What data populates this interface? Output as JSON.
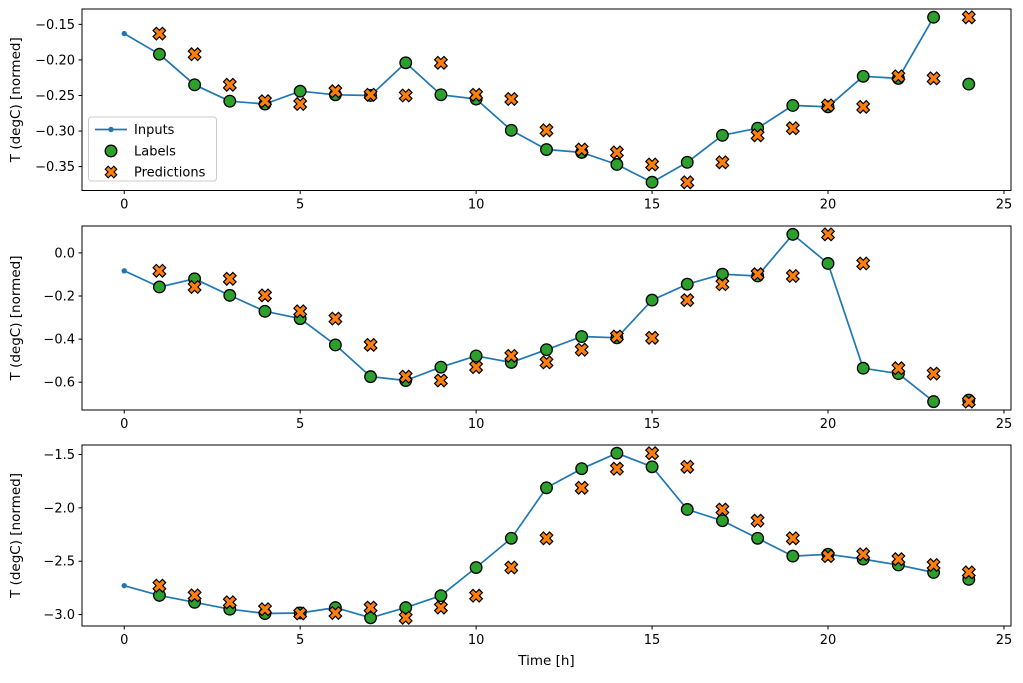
{
  "figure": {
    "background": "#ffffff",
    "xlabel": "Time [h]",
    "ylabel": "T (degC) [normed]",
    "xtick_labels": [
      "0",
      "5",
      "10",
      "15",
      "20",
      "25"
    ],
    "legend": {
      "entries": [
        "Inputs",
        "Labels",
        "Predictions"
      ],
      "location": "center-left of top subplot",
      "border_color": "#cccccc",
      "background": "#ffffff"
    },
    "colors": {
      "inputs": "#1f77b4",
      "labels": "#2ca02c",
      "predictions": "#ff7f0e",
      "marker_edge": "#000000",
      "axes": "#000000",
      "text": "#000000"
    }
  },
  "chart_data": [
    {
      "type": "line",
      "subplot": 1,
      "ylabel": "T (degC) [normed]",
      "xlabel": "",
      "grid": false,
      "xlim": [
        -1.2,
        25.2
      ],
      "ylim": [
        -0.3836,
        -0.1284
      ],
      "xticks": [
        0,
        5,
        10,
        15,
        20,
        25
      ],
      "yticks": [
        -0.15,
        -0.2,
        -0.25,
        -0.3,
        -0.35
      ],
      "ytick_labels": [
        "−0.15",
        "−0.20",
        "−0.25",
        "−0.30",
        "−0.35"
      ],
      "series": [
        {
          "name": "Inputs",
          "marker": "line-dot",
          "x": [
            0,
            1,
            2,
            3,
            4,
            5,
            6,
            7,
            8,
            9,
            10,
            11,
            12,
            13,
            14,
            15,
            16,
            17,
            18,
            19,
            20,
            21,
            22,
            23
          ],
          "values": [
            -0.163,
            -0.192,
            -0.235,
            -0.258,
            -0.262,
            -0.244,
            -0.249,
            -0.25,
            -0.204,
            -0.249,
            -0.255,
            -0.299,
            -0.326,
            -0.33,
            -0.347,
            -0.372,
            -0.344,
            -0.306,
            -0.296,
            -0.264,
            -0.266,
            -0.223,
            -0.226,
            -0.14
          ]
        },
        {
          "name": "Labels",
          "marker": "circle",
          "x": [
            1,
            2,
            3,
            4,
            5,
            6,
            7,
            8,
            9,
            10,
            11,
            12,
            13,
            14,
            15,
            16,
            17,
            18,
            19,
            20,
            21,
            22,
            23,
            24
          ],
          "values": [
            -0.192,
            -0.235,
            -0.258,
            -0.262,
            -0.244,
            -0.249,
            -0.25,
            -0.204,
            -0.249,
            -0.255,
            -0.299,
            -0.326,
            -0.33,
            -0.347,
            -0.372,
            -0.344,
            -0.306,
            -0.296,
            -0.264,
            -0.266,
            -0.223,
            -0.226,
            -0.14,
            -0.234
          ]
        },
        {
          "name": "Predictions",
          "marker": "X",
          "x": [
            1,
            2,
            3,
            4,
            5,
            6,
            7,
            8,
            9,
            10,
            11,
            12,
            13,
            14,
            15,
            16,
            17,
            18,
            19,
            20,
            21,
            22,
            23,
            24
          ],
          "values": [
            -0.163,
            -0.192,
            -0.235,
            -0.258,
            -0.262,
            -0.244,
            -0.249,
            -0.25,
            -0.204,
            -0.249,
            -0.255,
            -0.299,
            -0.326,
            -0.33,
            -0.347,
            -0.372,
            -0.344,
            -0.306,
            -0.296,
            -0.264,
            -0.266,
            -0.223,
            -0.226,
            -0.14
          ]
        }
      ]
    },
    {
      "type": "line",
      "subplot": 2,
      "ylabel": "T (degC) [normed]",
      "xlabel": "",
      "grid": false,
      "xlim": [
        -1.2,
        25.2
      ],
      "ylim": [
        -0.7288,
        0.1248
      ],
      "xticks": [
        0,
        5,
        10,
        15,
        20,
        25
      ],
      "yticks": [
        0.0,
        -0.2,
        -0.4,
        -0.6
      ],
      "ytick_labels": [
        "0.0",
        "−0.2",
        "−0.4",
        "−0.6"
      ],
      "series": [
        {
          "name": "Inputs",
          "marker": "line-dot",
          "x": [
            0,
            1,
            2,
            3,
            4,
            5,
            6,
            7,
            8,
            9,
            10,
            11,
            12,
            13,
            14,
            15,
            16,
            17,
            18,
            19,
            20,
            21,
            22,
            23
          ],
          "values": [
            -0.083,
            -0.158,
            -0.12,
            -0.197,
            -0.271,
            -0.305,
            -0.427,
            -0.574,
            -0.592,
            -0.53,
            -0.478,
            -0.508,
            -0.449,
            -0.388,
            -0.394,
            -0.219,
            -0.145,
            -0.099,
            -0.107,
            0.086,
            -0.049,
            -0.535,
            -0.56,
            -0.69
          ]
        },
        {
          "name": "Labels",
          "marker": "circle",
          "x": [
            1,
            2,
            3,
            4,
            5,
            6,
            7,
            8,
            9,
            10,
            11,
            12,
            13,
            14,
            15,
            16,
            17,
            18,
            19,
            20,
            21,
            22,
            23,
            24
          ],
          "values": [
            -0.158,
            -0.12,
            -0.197,
            -0.271,
            -0.305,
            -0.427,
            -0.574,
            -0.592,
            -0.53,
            -0.478,
            -0.508,
            -0.449,
            -0.388,
            -0.394,
            -0.219,
            -0.145,
            -0.099,
            -0.107,
            0.086,
            -0.049,
            -0.535,
            -0.56,
            -0.69,
            -0.683
          ]
        },
        {
          "name": "Predictions",
          "marker": "X",
          "x": [
            1,
            2,
            3,
            4,
            5,
            6,
            7,
            8,
            9,
            10,
            11,
            12,
            13,
            14,
            15,
            16,
            17,
            18,
            19,
            20,
            21,
            22,
            23,
            24
          ],
          "values": [
            -0.083,
            -0.158,
            -0.12,
            -0.197,
            -0.271,
            -0.305,
            -0.427,
            -0.574,
            -0.592,
            -0.53,
            -0.478,
            -0.508,
            -0.449,
            -0.388,
            -0.394,
            -0.219,
            -0.145,
            -0.099,
            -0.107,
            0.086,
            -0.049,
            -0.535,
            -0.56,
            -0.69
          ]
        }
      ]
    },
    {
      "type": "line",
      "subplot": 3,
      "ylabel": "T (degC) [normed]",
      "xlabel": "Time [h]",
      "grid": false,
      "xlim": [
        -1.2,
        25.2
      ],
      "ylim": [
        -3.1071,
        -1.4109
      ],
      "xticks": [
        0,
        5,
        10,
        15,
        20,
        25
      ],
      "yticks": [
        -1.5,
        -2.0,
        -2.5,
        -3.0
      ],
      "ytick_labels": [
        "−1.5",
        "−2.0",
        "−2.5",
        "−3.0"
      ],
      "series": [
        {
          "name": "Inputs",
          "marker": "line-dot",
          "x": [
            0,
            1,
            2,
            3,
            4,
            5,
            6,
            7,
            8,
            9,
            10,
            11,
            12,
            13,
            14,
            15,
            16,
            17,
            18,
            19,
            20,
            21,
            22,
            23
          ],
          "values": [
            -2.729,
            -2.82,
            -2.885,
            -2.95,
            -2.99,
            -2.985,
            -2.935,
            -3.03,
            -2.935,
            -2.823,
            -2.559,
            -2.285,
            -1.812,
            -1.633,
            -1.488,
            -1.615,
            -2.015,
            -2.12,
            -2.285,
            -2.452,
            -2.435,
            -2.48,
            -2.535,
            -2.605
          ]
        },
        {
          "name": "Labels",
          "marker": "circle",
          "x": [
            1,
            2,
            3,
            4,
            5,
            6,
            7,
            8,
            9,
            10,
            11,
            12,
            13,
            14,
            15,
            16,
            17,
            18,
            19,
            20,
            21,
            22,
            23,
            24
          ],
          "values": [
            -2.82,
            -2.885,
            -2.95,
            -2.99,
            -2.985,
            -2.935,
            -3.03,
            -2.935,
            -2.823,
            -2.559,
            -2.285,
            -1.812,
            -1.633,
            -1.488,
            -1.615,
            -2.015,
            -2.12,
            -2.285,
            -2.452,
            -2.435,
            -2.48,
            -2.535,
            -2.605,
            -2.67
          ]
        },
        {
          "name": "Predictions",
          "marker": "X",
          "x": [
            1,
            2,
            3,
            4,
            5,
            6,
            7,
            8,
            9,
            10,
            11,
            12,
            13,
            14,
            15,
            16,
            17,
            18,
            19,
            20,
            21,
            22,
            23,
            24
          ],
          "values": [
            -2.729,
            -2.82,
            -2.885,
            -2.95,
            -2.99,
            -2.985,
            -2.935,
            -3.03,
            -2.935,
            -2.823,
            -2.559,
            -2.285,
            -1.812,
            -1.633,
            -1.488,
            -1.615,
            -2.015,
            -2.12,
            -2.285,
            -2.452,
            -2.435,
            -2.48,
            -2.535,
            -2.605
          ]
        }
      ]
    }
  ]
}
